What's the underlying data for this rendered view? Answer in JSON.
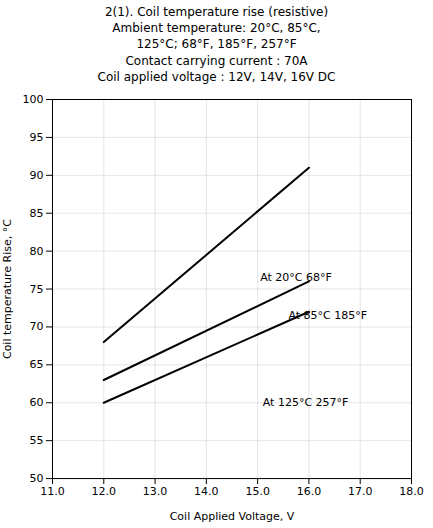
{
  "chart_data": {
    "type": "line",
    "title": "2(1). Coil temperature rise (resistive)\nAmbient temperature: 20°C, 85°C,\n125°C; 68°F, 185°F, 257°F\nContact carrying current : 70A\nCoil applied voltage : 12V, 14V, 16V DC",
    "x_label": "Coil Applied Voltage, V",
    "y_label": "Coil temperature Rise, °C",
    "x": [
      12,
      16
    ],
    "series": [
      {
        "color": "black",
        "values": [
          68,
          91
        ]
      },
      {
        "color": "black",
        "values": [
          63,
          76
        ]
      },
      {
        "color": "black",
        "values": [
          60,
          72
        ]
      }
    ],
    "xlim": [
      11,
      18
    ],
    "ylim": [
      50,
      100
    ],
    "xticks": [
      11,
      12,
      13,
      14,
      15,
      16,
      17,
      18
    ],
    "yticks": [
      50,
      55,
      60,
      65,
      70,
      75,
      80,
      85,
      90,
      95,
      100
    ],
    "grid": true,
    "annotations": [
      {
        "text": "At 20°C 68°F",
        "x": 15.05,
        "y": 76.5
      },
      {
        "text": "At 85°C 185°F",
        "x": 15.6,
        "y": 71.5
      },
      {
        "text": "At 125°C 257°F",
        "x": 15.1,
        "y": 60.0
      }
    ]
  }
}
